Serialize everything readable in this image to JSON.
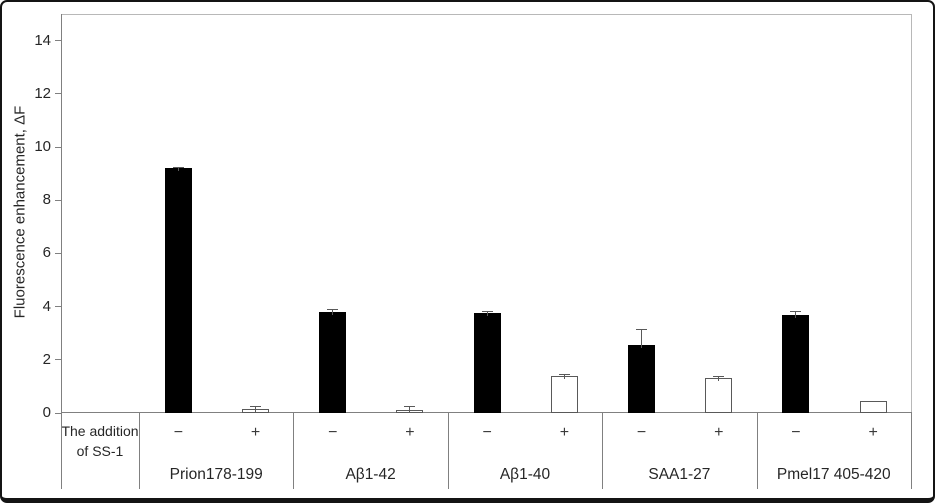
{
  "chart_data": {
    "type": "bar",
    "title": "",
    "xlabel": "",
    "ylabel": "Fluorescence enhancement, ΔF",
    "ylim": [
      0,
      15
    ],
    "yticks": [
      0,
      2,
      4,
      6,
      8,
      10,
      12,
      14
    ],
    "grid": false,
    "legend": "none",
    "condition_row_label": "The addition of SS-1",
    "categories": [
      "Prion178-199",
      "Aβ1-42",
      "Aβ1-40",
      "SAA1-27",
      "Pmel17 405-420"
    ],
    "conditions": [
      "−",
      "+"
    ],
    "series": [
      {
        "name": "−",
        "description": "without SS-1",
        "fill": "#000000",
        "values": [
          9.2,
          3.8,
          3.75,
          2.55,
          3.7
        ],
        "errors": [
          0.06,
          0.1,
          0.1,
          0.6,
          0.12
        ]
      },
      {
        "name": "+",
        "description": "with SS-1",
        "fill": "#ffffff",
        "values": [
          0.15,
          0.1,
          1.4,
          1.3,
          0.45
        ],
        "errors": [
          0.1,
          0.18,
          0.08,
          0.1,
          0
        ]
      }
    ],
    "colors": {
      "bar_outline": "#595959",
      "axis_line": "#808080",
      "plot_border": "#b8b8b8",
      "text": "#262626"
    }
  }
}
